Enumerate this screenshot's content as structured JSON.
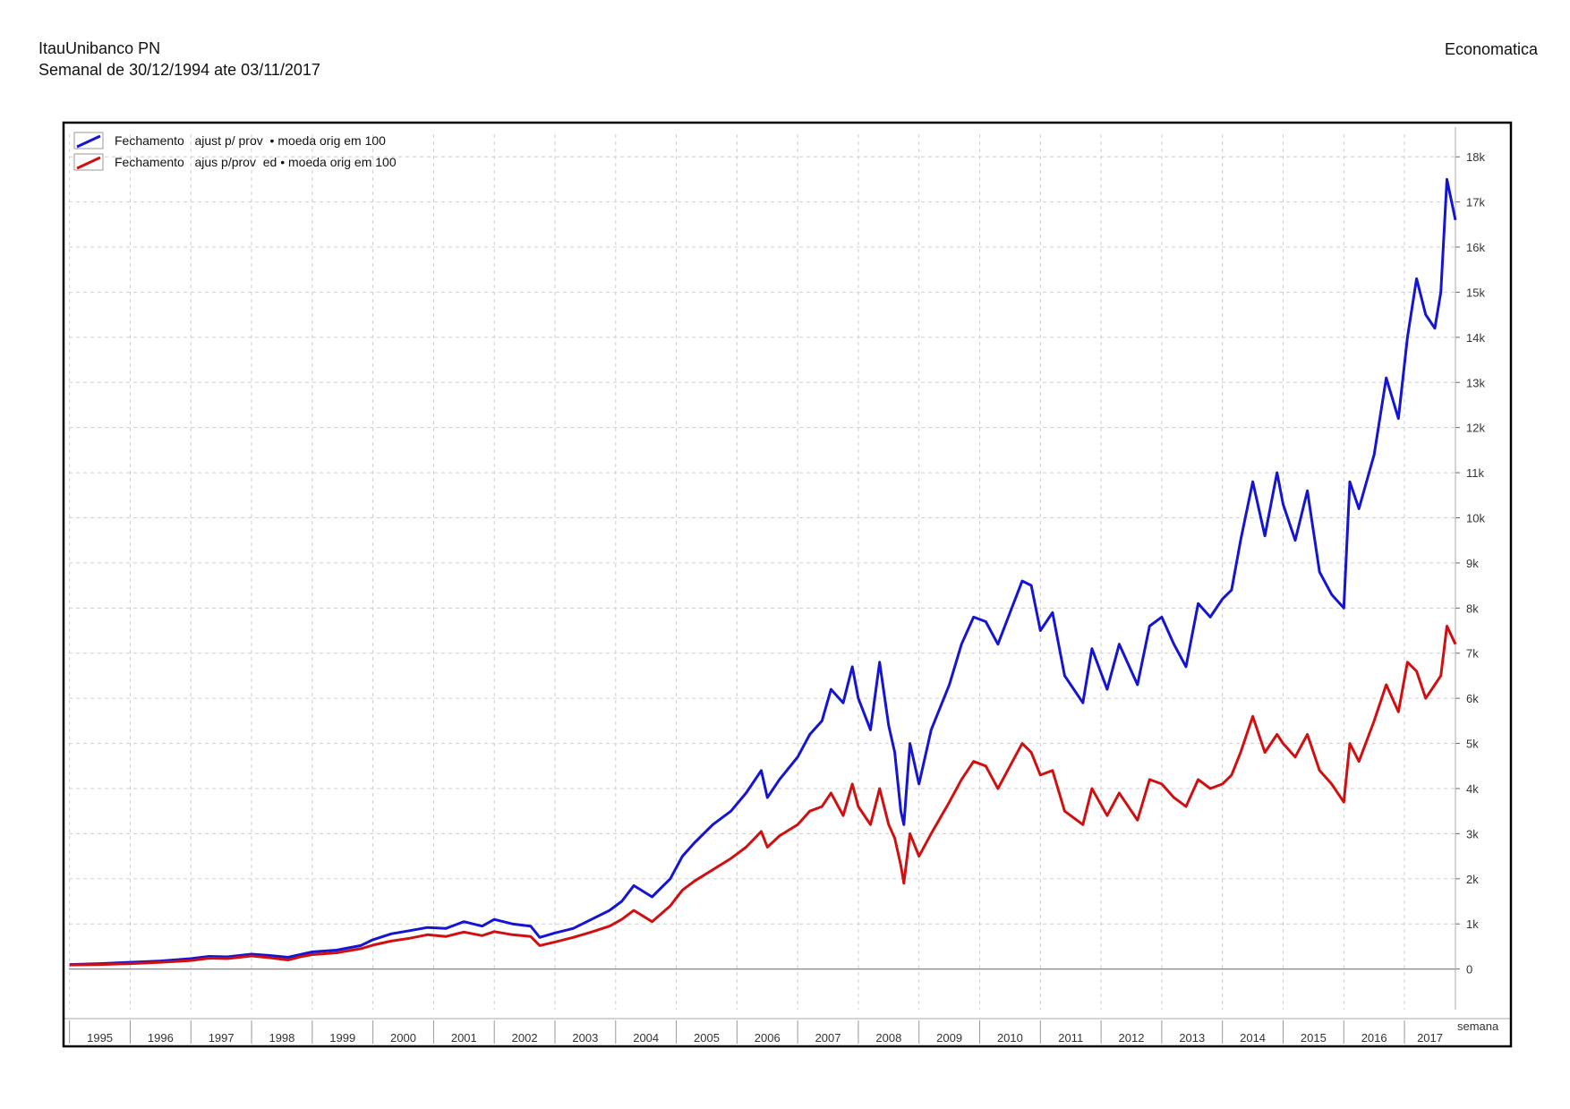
{
  "header": {
    "title": "ItauUnibanco PN",
    "subtitle": "Semanal de 30/12/1994 ate 03/11/2017",
    "brand": "Economatica"
  },
  "colors": {
    "series_blue": "#1414d2",
    "series_red": "#d01010",
    "grid": "#cfcfcf",
    "frame": "#000000"
  },
  "chart_data": {
    "type": "line",
    "title": "ItauUnibanco PN",
    "xlabel": "semana",
    "ylabel": "",
    "x_range": [
      1994.99,
      2017.84
    ],
    "ylim": [
      -900,
      18500
    ],
    "grid": true,
    "legend_position": "top-left",
    "x_tick_labels": [
      "1995",
      "1996",
      "1997",
      "1998",
      "1999",
      "2000",
      "2001",
      "2002",
      "2003",
      "2004",
      "2005",
      "2006",
      "2007",
      "2008",
      "2009",
      "2010",
      "2011",
      "2012",
      "2013",
      "2014",
      "2015",
      "2016",
      "2017"
    ],
    "y_ticks": [
      0,
      1000,
      2000,
      3000,
      4000,
      5000,
      6000,
      7000,
      8000,
      9000,
      10000,
      11000,
      12000,
      13000,
      14000,
      15000,
      16000,
      17000,
      18000
    ],
    "y_tick_labels": [
      "0",
      "1k",
      "2k",
      "3k",
      "4k",
      "5k",
      "6k",
      "7k",
      "8k",
      "9k",
      "10k",
      "11k",
      "12k",
      "13k",
      "14k",
      "15k",
      "16k",
      "17k",
      "18k"
    ],
    "series": [
      {
        "name": "Fechamento   ajust p/ prov  • moeda orig em 100",
        "color": "#1414d2",
        "x": [
          1995.0,
          1995.5,
          1996.0,
          1996.5,
          1997.0,
          1997.3,
          1997.6,
          1998.0,
          1998.3,
          1998.6,
          1998.8,
          1999.0,
          1999.4,
          1999.8,
          2000.0,
          2000.3,
          2000.6,
          2000.9,
          2001.2,
          2001.5,
          2001.8,
          2002.0,
          2002.3,
          2002.6,
          2002.75,
          2003.0,
          2003.3,
          2003.6,
          2003.9,
          2004.1,
          2004.3,
          2004.6,
          2004.9,
          2005.1,
          2005.3,
          2005.6,
          2005.9,
          2006.15,
          2006.4,
          2006.5,
          2006.7,
          2007.0,
          2007.2,
          2007.4,
          2007.55,
          2007.75,
          2007.9,
          2008.0,
          2008.2,
          2008.35,
          2008.5,
          2008.6,
          2008.7,
          2008.75,
          2008.85,
          2009.0,
          2009.2,
          2009.5,
          2009.7,
          2009.9,
          2010.1,
          2010.3,
          2010.5,
          2010.7,
          2010.85,
          2011.0,
          2011.2,
          2011.4,
          2011.7,
          2011.85,
          2012.1,
          2012.3,
          2012.6,
          2012.8,
          2013.0,
          2013.2,
          2013.4,
          2013.6,
          2013.8,
          2014.0,
          2014.15,
          2014.3,
          2014.5,
          2014.7,
          2014.9,
          2015.0,
          2015.2,
          2015.4,
          2015.6,
          2015.8,
          2016.0,
          2016.1,
          2016.25,
          2016.5,
          2016.7,
          2016.9,
          2017.05,
          2017.2,
          2017.35,
          2017.5,
          2017.6,
          2017.7,
          2017.84
        ],
        "y": [
          100,
          120,
          150,
          180,
          230,
          280,
          270,
          330,
          300,
          260,
          320,
          380,
          420,
          520,
          650,
          780,
          850,
          920,
          900,
          1050,
          950,
          1100,
          1000,
          950,
          700,
          800,
          900,
          1100,
          1300,
          1500,
          1850,
          1600,
          2000,
          2500,
          2800,
          3200,
          3500,
          3900,
          4400,
          3800,
          4200,
          4700,
          5200,
          5500,
          6200,
          5900,
          6700,
          6000,
          5300,
          6800,
          5400,
          4800,
          3500,
          3200,
          5000,
          4100,
          5300,
          6300,
          7200,
          7800,
          7700,
          7200,
          7900,
          8600,
          8500,
          7500,
          7900,
          6500,
          5900,
          7100,
          6200,
          7200,
          6300,
          7600,
          7800,
          7200,
          6700,
          8100,
          7800,
          8200,
          8400,
          9500,
          10800,
          9600,
          11000,
          10300,
          9500,
          10600,
          8800,
          8300,
          8000,
          10800,
          10200,
          11400,
          13100,
          12200,
          14000,
          15300,
          14500,
          14200,
          15000,
          17500,
          16600
        ]
      },
      {
        "name": "Fechamento   ajus p/prov  ed • moeda orig em 100",
        "color": "#d01010",
        "x": [
          1995.0,
          1995.5,
          1996.0,
          1996.5,
          1997.0,
          1997.3,
          1997.6,
          1998.0,
          1998.3,
          1998.6,
          1998.8,
          1999.0,
          1999.4,
          1999.8,
          2000.0,
          2000.3,
          2000.6,
          2000.9,
          2001.2,
          2001.5,
          2001.8,
          2002.0,
          2002.3,
          2002.6,
          2002.75,
          2003.0,
          2003.3,
          2003.6,
          2003.9,
          2004.1,
          2004.3,
          2004.6,
          2004.9,
          2005.1,
          2005.3,
          2005.6,
          2005.9,
          2006.15,
          2006.4,
          2006.5,
          2006.7,
          2007.0,
          2007.2,
          2007.4,
          2007.55,
          2007.75,
          2007.9,
          2008.0,
          2008.2,
          2008.35,
          2008.5,
          2008.6,
          2008.7,
          2008.75,
          2008.85,
          2009.0,
          2009.2,
          2009.5,
          2009.7,
          2009.9,
          2010.1,
          2010.3,
          2010.5,
          2010.7,
          2010.85,
          2011.0,
          2011.2,
          2011.4,
          2011.7,
          2011.85,
          2012.1,
          2012.3,
          2012.6,
          2012.8,
          2013.0,
          2013.2,
          2013.4,
          2013.6,
          2013.8,
          2014.0,
          2014.15,
          2014.3,
          2014.5,
          2014.7,
          2014.9,
          2015.0,
          2015.2,
          2015.4,
          2015.6,
          2015.8,
          2016.0,
          2016.1,
          2016.25,
          2016.5,
          2016.7,
          2016.9,
          2017.05,
          2017.2,
          2017.35,
          2017.5,
          2017.6,
          2017.7,
          2017.84
        ],
        "y": [
          90,
          100,
          120,
          150,
          190,
          240,
          230,
          290,
          250,
          200,
          270,
          320,
          360,
          450,
          530,
          620,
          680,
          760,
          720,
          820,
          740,
          830,
          760,
          720,
          520,
          600,
          700,
          820,
          950,
          1100,
          1300,
          1050,
          1400,
          1750,
          1950,
          2200,
          2450,
          2700,
          3050,
          2700,
          2950,
          3200,
          3500,
          3600,
          3900,
          3400,
          4100,
          3600,
          3200,
          4000,
          3200,
          2900,
          2300,
          1900,
          3000,
          2500,
          3000,
          3700,
          4200,
          4600,
          4500,
          4000,
          4500,
          5000,
          4800,
          4300,
          4400,
          3500,
          3200,
          4000,
          3400,
          3900,
          3300,
          4200,
          4100,
          3800,
          3600,
          4200,
          4000,
          4100,
          4300,
          4800,
          5600,
          4800,
          5200,
          5000,
          4700,
          5200,
          4400,
          4100,
          3700,
          5000,
          4600,
          5500,
          6300,
          5700,
          6800,
          6600,
          6000,
          6300,
          6500,
          7600,
          7200
        ]
      }
    ]
  }
}
